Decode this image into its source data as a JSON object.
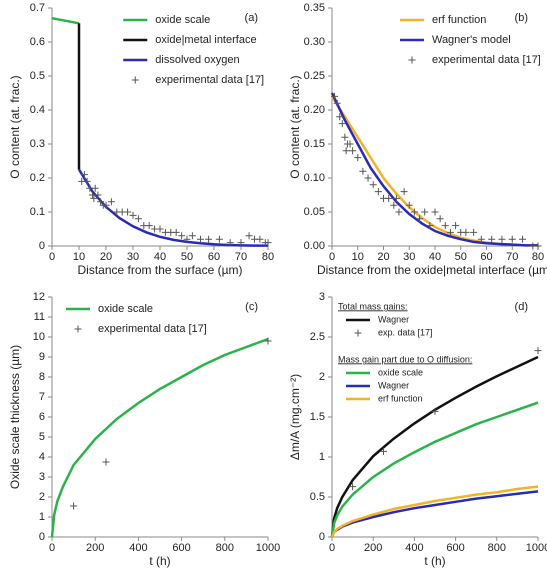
{
  "chart_data": [
    {
      "type": "line",
      "label": "(a)",
      "x_label": "Distance from the surface (µm)",
      "y_label": "O content (at. frac.)",
      "xlim": [
        0,
        80
      ],
      "xticks": [
        0,
        10,
        20,
        30,
        40,
        50,
        60,
        70,
        80
      ],
      "ylim": [
        0,
        0.7
      ],
      "yticks": [
        0,
        0.1,
        0.2,
        0.3,
        0.4,
        0.5,
        0.6,
        0.7
      ],
      "legend": "upper right",
      "series": [
        {
          "name": "oxide scale",
          "style": "line",
          "color": "#2bb34b",
          "x": [
            0,
            10
          ],
          "values": [
            0.67,
            0.655
          ]
        },
        {
          "name": "oxide|metal interface",
          "style": "line",
          "color": "#111111",
          "x": [
            10,
            10
          ],
          "values": [
            0.655,
            0.225
          ]
        },
        {
          "name": "dissolved oxygen",
          "style": "line",
          "color": "#2a2ab8",
          "x": [
            10,
            15,
            20,
            25,
            30,
            35,
            40,
            45,
            50,
            55,
            60,
            65,
            70,
            75,
            80
          ],
          "values": [
            0.225,
            0.16,
            0.115,
            0.082,
            0.058,
            0.04,
            0.027,
            0.018,
            0.012,
            0.008,
            0.005,
            0.003,
            0.002,
            0.001,
            0.001
          ]
        },
        {
          "name": "experimental data [17]",
          "style": "marker",
          "color": "#555555",
          "x": [
            11,
            12,
            13,
            14,
            15,
            15.5,
            16,
            17,
            18,
            19,
            20,
            22,
            24,
            26,
            28,
            30,
            32,
            34,
            36,
            38,
            40,
            42,
            44,
            46,
            48,
            50,
            52,
            55,
            58,
            62,
            66,
            70,
            73,
            75,
            77,
            79,
            80
          ],
          "values": [
            0.19,
            0.21,
            0.19,
            0.17,
            0.15,
            0.14,
            0.17,
            0.15,
            0.13,
            0.12,
            0.12,
            0.13,
            0.1,
            0.1,
            0.1,
            0.09,
            0.08,
            0.06,
            0.06,
            0.05,
            0.05,
            0.04,
            0.04,
            0.04,
            0.03,
            0.02,
            0.03,
            0.02,
            0.02,
            0.02,
            0.01,
            0.01,
            0.03,
            0.02,
            0.02,
            0.01,
            0.01
          ]
        }
      ]
    },
    {
      "type": "line",
      "label": "(b)",
      "x_label": "Distance from the oxide|metal interface (µm)",
      "y_label": "O content (at. frac.)",
      "xlim": [
        0,
        80
      ],
      "xticks": [
        0,
        10,
        20,
        30,
        40,
        50,
        60,
        70,
        80
      ],
      "ylim": [
        0,
        0.35
      ],
      "yticks": [
        {
          "value": 0,
          "label": "0.00"
        },
        {
          "value": 0.05,
          "label": "0.05"
        },
        {
          "value": 0.1,
          "label": "0.10"
        },
        {
          "value": 0.15,
          "label": "0.15"
        },
        {
          "value": 0.2,
          "label": "0.20"
        },
        {
          "value": 0.25,
          "label": "0.25"
        },
        {
          "value": 0.3,
          "label": "0.30"
        },
        {
          "value": 0.35,
          "label": "0.35"
        }
      ],
      "legend": "upper right",
      "series": [
        {
          "name": "erf function",
          "style": "line",
          "color": "#f0b429",
          "x": [
            0,
            5,
            10,
            15,
            20,
            25,
            30,
            35,
            40,
            45,
            50,
            55,
            60,
            65,
            70,
            75,
            80
          ],
          "values": [
            0.22,
            0.19,
            0.16,
            0.13,
            0.1,
            0.077,
            0.057,
            0.041,
            0.028,
            0.019,
            0.012,
            0.008,
            0.005,
            0.003,
            0.002,
            0.001,
            0.001
          ]
        },
        {
          "name": "Wagner's model",
          "style": "line",
          "color": "#2a2ab8",
          "x": [
            0,
            5,
            10,
            15,
            20,
            25,
            30,
            35,
            40,
            45,
            50,
            55,
            60,
            65,
            70,
            75,
            80
          ],
          "values": [
            0.225,
            0.185,
            0.15,
            0.115,
            0.088,
            0.065,
            0.047,
            0.033,
            0.022,
            0.015,
            0.01,
            0.006,
            0.004,
            0.003,
            0.002,
            0.001,
            0.001
          ]
        },
        {
          "name": "experimental data [17]",
          "style": "marker",
          "color": "#555555",
          "x": [
            1,
            2,
            3,
            4,
            5,
            5.5,
            6,
            7,
            8,
            10,
            12,
            14,
            16,
            18,
            20,
            22,
            24,
            25,
            26,
            28,
            30,
            32,
            34,
            36,
            38,
            40,
            42,
            44,
            46,
            48,
            50,
            52,
            55,
            58,
            62,
            66,
            70,
            74,
            78,
            80
          ],
          "values": [
            0.22,
            0.21,
            0.19,
            0.18,
            0.16,
            0.14,
            0.15,
            0.15,
            0.14,
            0.13,
            0.11,
            0.1,
            0.09,
            0.08,
            0.07,
            0.07,
            0.06,
            0.07,
            0.05,
            0.08,
            0.06,
            0.05,
            0.04,
            0.05,
            0.03,
            0.05,
            0.04,
            0.03,
            0.02,
            0.03,
            0.02,
            0.02,
            0.02,
            0.01,
            0.01,
            0.01,
            0.01,
            0.01,
            0,
            0
          ]
        }
      ]
    },
    {
      "type": "line",
      "label": "(c)",
      "x_label": "t (h)",
      "y_label": "Oxide scale thickness (µm)",
      "xlim": [
        0,
        1000
      ],
      "xticks": [
        0,
        200,
        400,
        600,
        800,
        1000
      ],
      "ylim": [
        0,
        12
      ],
      "yticks": [
        0,
        1,
        2,
        3,
        4,
        5,
        6,
        7,
        8,
        9,
        10,
        11,
        12
      ],
      "legend": "upper left",
      "series": [
        {
          "name": "oxide scale",
          "style": "line",
          "color": "#2bb34b",
          "x": [
            0,
            10,
            25,
            50,
            100,
            200,
            300,
            400,
            500,
            600,
            700,
            800,
            900,
            1000
          ],
          "values": [
            0,
            1.1,
            1.8,
            2.5,
            3.6,
            4.9,
            5.9,
            6.7,
            7.4,
            8.0,
            8.6,
            9.1,
            9.5,
            9.9
          ]
        },
        {
          "name": "experimental data [17]",
          "style": "marker",
          "color": "#555555",
          "x": [
            100,
            250,
            1000
          ],
          "values": [
            1.55,
            3.75,
            9.8
          ]
        }
      ]
    },
    {
      "type": "line",
      "label": "(d)",
      "x_label": "t (h)",
      "y_label": "Δm/A (mg.cm⁻²)",
      "xlim": [
        0,
        1000
      ],
      "xticks": [
        0,
        200,
        400,
        600,
        800,
        1000
      ],
      "ylim": [
        0,
        3
      ],
      "yticks": [
        0,
        0.5,
        1,
        1.5,
        2,
        2.5,
        3
      ],
      "legend": "upper left",
      "legend_groups": [
        {
          "title": "Total mass gains:",
          "series": [
            0,
            1
          ]
        },
        {
          "title": "Mass gain part due to O diffusion:",
          "series": [
            2,
            3,
            4
          ]
        }
      ],
      "series": [
        {
          "name": "Wagner",
          "style": "line",
          "color": "#111111",
          "x": [
            0,
            10,
            25,
            50,
            100,
            200,
            300,
            400,
            500,
            600,
            700,
            800,
            900,
            1000
          ],
          "values": [
            0,
            0.23,
            0.36,
            0.5,
            0.71,
            1.01,
            1.23,
            1.42,
            1.59,
            1.74,
            1.88,
            2.01,
            2.13,
            2.25
          ]
        },
        {
          "name": "exp. data [17]",
          "style": "marker",
          "color": "#555555",
          "x": [
            100,
            250,
            500,
            1000
          ],
          "values": [
            0.63,
            1.07,
            1.57,
            2.33
          ]
        },
        {
          "name": "oxide scale",
          "style": "line",
          "color": "#2bb34b",
          "x": [
            0,
            10,
            25,
            50,
            100,
            200,
            300,
            400,
            500,
            600,
            700,
            800,
            900,
            1000
          ],
          "values": [
            0,
            0.17,
            0.27,
            0.38,
            0.53,
            0.75,
            0.92,
            1.06,
            1.19,
            1.3,
            1.41,
            1.5,
            1.59,
            1.68
          ]
        },
        {
          "name": "Wagner",
          "style": "line",
          "color": "#2a2ab8",
          "x": [
            0,
            10,
            25,
            50,
            100,
            200,
            300,
            400,
            500,
            600,
            700,
            800,
            900,
            1000
          ],
          "values": [
            0,
            0.06,
            0.09,
            0.13,
            0.18,
            0.25,
            0.31,
            0.36,
            0.4,
            0.44,
            0.48,
            0.51,
            0.54,
            0.57
          ]
        },
        {
          "name": "erf function",
          "style": "line",
          "color": "#f0b429",
          "x": [
            0,
            10,
            25,
            50,
            100,
            200,
            300,
            400,
            500,
            600,
            700,
            800,
            900,
            1000
          ],
          "values": [
            0,
            0.06,
            0.1,
            0.14,
            0.2,
            0.28,
            0.35,
            0.4,
            0.45,
            0.49,
            0.53,
            0.56,
            0.6,
            0.63
          ]
        }
      ]
    }
  ]
}
